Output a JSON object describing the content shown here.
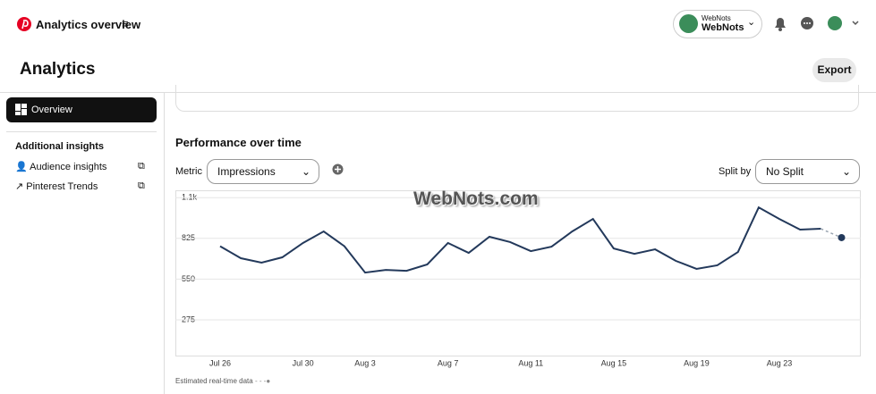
{
  "header": {
    "title": "Analytics overview",
    "account_small": "WebNots",
    "account_name": "WebNots",
    "page_title": "Analytics",
    "export": "Export"
  },
  "sidebar": {
    "overview": "Overview",
    "section": "Additional insights",
    "links": [
      "Audience insights",
      "Pinterest Trends"
    ]
  },
  "panel": {
    "title": "Performance over time",
    "metric_label": "Metric",
    "metric_value": "Impressions",
    "split_label": "Split by",
    "split_value": "No Split",
    "watermark": "WebNots.com",
    "footnote": "Estimated real-time data"
  },
  "chart_data": {
    "type": "line",
    "categories": [
      "Jul 26",
      null,
      null,
      null,
      "Jul 30",
      null,
      null,
      "Aug 3",
      null,
      null,
      null,
      "Aug 7",
      null,
      null,
      null,
      "Aug 11",
      null,
      null,
      null,
      "Aug 15",
      null,
      null,
      null,
      "Aug 19",
      null,
      null,
      null,
      "Aug 23",
      null,
      null,
      null
    ],
    "series": [
      {
        "color": "#23395b",
        "values": [
          772,
          691,
          661,
          697,
          794,
          872,
          772,
          594,
          612,
          606,
          649,
          794,
          727,
          836,
          800,
          739,
          769,
          872,
          956,
          757,
          721,
          751,
          673,
          619,
          643,
          733,
          1034,
          956,
          884,
          890,
          null
        ]
      },
      {
        "color": "#9aa5b1",
        "dashed": true,
        "values": [
          null,
          null,
          null,
          null,
          null,
          null,
          null,
          null,
          null,
          null,
          null,
          null,
          null,
          null,
          null,
          null,
          null,
          null,
          null,
          null,
          null,
          null,
          null,
          null,
          null,
          null,
          null,
          null,
          null,
          890,
          830
        ]
      }
    ],
    "ylim": [
      0,
      1100
    ],
    "yticks": [
      275,
      550,
      825,
      {
        "value": 1100,
        "label": "1.1k"
      }
    ],
    "grid": true
  }
}
